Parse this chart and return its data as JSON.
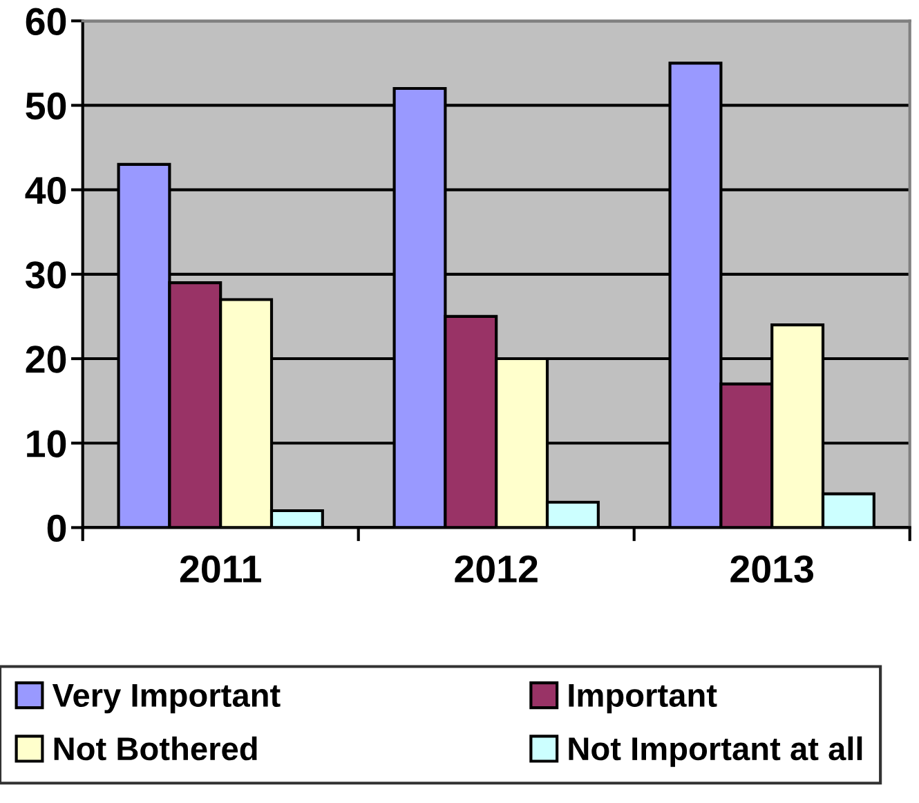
{
  "chart_data": {
    "type": "bar",
    "categories": [
      "2011",
      "2012",
      "2013"
    ],
    "series": [
      {
        "name": "Very Important",
        "color": "#9999ff",
        "values": [
          43,
          52,
          55
        ]
      },
      {
        "name": "Important",
        "color": "#993366",
        "values": [
          29,
          25,
          17
        ]
      },
      {
        "name": "Not Bothered",
        "color": "#ffffcc",
        "values": [
          27,
          20,
          24
        ]
      },
      {
        "name": "Not Important at all",
        "color": "#ccffff",
        "values": [
          2,
          3,
          4
        ]
      }
    ],
    "ylim": [
      0,
      60
    ],
    "yticks": [
      0,
      10,
      20,
      30,
      40,
      50,
      60
    ],
    "grid": "y",
    "legend": "bottom"
  }
}
